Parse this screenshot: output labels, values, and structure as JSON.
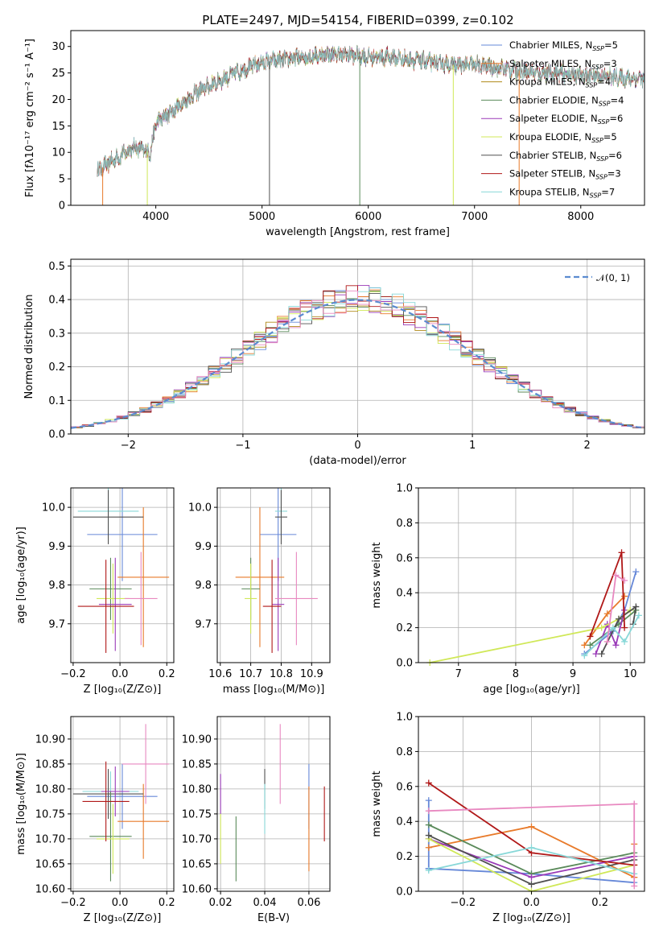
{
  "figure": {
    "title": "PLATE=2497, MJD=54154, FIBERID=0399, z=0.102"
  },
  "colors": {
    "palette": [
      "#6688d8",
      "#e87a2a",
      "#b08a18",
      "#5a8a5a",
      "#9a3ab8",
      "#d0e858",
      "#505050",
      "#b01818",
      "#88d8d8",
      "#e888c0"
    ]
  },
  "chart_data": [
    {
      "id": "spectrum",
      "type": "line",
      "title": "PLATE=2497, MJD=54154, FIBERID=0399, z=0.102",
      "xlabel": "wavelength [Angstrom, rest frame]",
      "ylabel": "Flux [fλ10⁻¹⁷ erg cm⁻² s⁻¹ A⁻¹]",
      "xlim": [
        3200,
        8600
      ],
      "ylim": [
        0,
        33
      ],
      "xticks": [
        4000,
        5000,
        6000,
        7000,
        8000
      ],
      "yticks": [
        0,
        5,
        10,
        15,
        20,
        25,
        30
      ],
      "grid": false,
      "legend_position": "top-right",
      "continuum_x": [
        3450,
        3600,
        3800,
        3950,
        4000,
        4200,
        4300,
        4400,
        4600,
        4800,
        5000,
        5200,
        5400,
        5600,
        5800,
        6000,
        6200,
        6400,
        6600,
        6800,
        7000,
        7200,
        7400,
        7600,
        7800,
        8000,
        8200,
        8400,
        8600
      ],
      "continuum_y": [
        6.5,
        8.5,
        11,
        10,
        15.5,
        18.5,
        20,
        21.5,
        23.5,
        25.5,
        27,
        27.5,
        28,
        28.5,
        28.5,
        28,
        28,
        27.5,
        27,
        26.5,
        26.5,
        26,
        25.5,
        25,
        25,
        24.5,
        24.5,
        24,
        24
      ],
      "series": [
        {
          "name": "Chabrier MILES, N_SSP=5",
          "label_main": "Chabrier MILES, N",
          "label_sub": "SSP",
          "label_end": "=5"
        },
        {
          "name": "Salpeter MILES, N_SSP=3",
          "label_main": "Salpeter MILES, N",
          "label_sub": "SSP",
          "label_end": "=3"
        },
        {
          "name": "Kroupa MILES, N_SSP=4",
          "label_main": "Kroupa MILES, N",
          "label_sub": "SSP",
          "label_end": "=4"
        },
        {
          "name": "Chabrier ELODIE, N_SSP=4",
          "label_main": "Chabrier ELODIE, N",
          "label_sub": "SSP",
          "label_end": "=4"
        },
        {
          "name": "Salpeter ELODIE, N_SSP=6",
          "label_main": "Salpeter ELODIE, N",
          "label_sub": "SSP",
          "label_end": "=6"
        },
        {
          "name": "Kroupa ELODIE, N_SSP=5",
          "label_main": "Kroupa ELODIE, N",
          "label_sub": "SSP",
          "label_end": "=5"
        },
        {
          "name": "Chabrier STELIB, N_SSP=6",
          "label_main": "Chabrier STELIB, N",
          "label_sub": "SSP",
          "label_end": "=6"
        },
        {
          "name": "Salpeter STELIB, N_SSP=3",
          "label_main": "Salpeter STELIB, N",
          "label_sub": "SSP",
          "label_end": "=3"
        },
        {
          "name": "Kroupa STELIB, N_SSP=7",
          "label_main": "Kroupa STELIB, N",
          "label_sub": "SSP",
          "label_end": "=7"
        }
      ],
      "series_colors": [
        "#6688d8",
        "#e87a2a",
        "#b08a18",
        "#5a8a5a",
        "#9a3ab8",
        "#d0e858",
        "#505050",
        "#b01818",
        "#88d8d8"
      ],
      "drop_lines": [
        {
          "x": 3500,
          "series": 1
        },
        {
          "x": 3920,
          "series": 5
        },
        {
          "x": 5070,
          "series": 6
        },
        {
          "x": 5920,
          "series": 3
        },
        {
          "x": 6800,
          "series": 5
        },
        {
          "x": 7420,
          "series": 1
        }
      ]
    },
    {
      "id": "residuals",
      "type": "line",
      "xlabel": "(data-model)/error",
      "ylabel": "Normed distribution",
      "xlim": [
        -2.5,
        2.5
      ],
      "ylim": [
        0,
        0.52
      ],
      "xticks": [
        -2,
        -1,
        0,
        1,
        2
      ],
      "yticks": [
        0.0,
        0.1,
        0.2,
        0.3,
        0.4,
        0.5
      ],
      "grid": true,
      "legend_position": "top-right",
      "legend_label": "𝒩(0, 1)",
      "gaussian": {
        "mean": 0,
        "sigma": 1
      },
      "bin_width": 0.1
    },
    {
      "id": "age_vs_Z",
      "type": "scatter",
      "xlabel": "Z [log₁₀(Z/Z⊙)]",
      "ylabel": "age  [log₁₀(age/yr)]",
      "xlim": [
        -0.21,
        0.23
      ],
      "ylim": [
        9.6,
        10.05
      ],
      "xticks": [
        -0.2,
        0.0,
        0.2
      ],
      "yticks": [
        9.7,
        9.8,
        9.9,
        10.0
      ],
      "grid": true,
      "points": [
        {
          "x": 0.01,
          "y": 9.93,
          "xerr": 0.15,
          "yerr": 0.12,
          "c": 0
        },
        {
          "x": 0.1,
          "y": 9.82,
          "xerr": 0.11,
          "yerr": 0.18,
          "c": 1
        },
        {
          "x": -0.05,
          "y": 9.99,
          "xerr": 0.13,
          "yerr": 0.06,
          "c": 8
        },
        {
          "x": -0.05,
          "y": 9.975,
          "xerr": 0.15,
          "yerr": 0.07,
          "c": 6
        },
        {
          "x": -0.04,
          "y": 9.79,
          "xerr": 0.09,
          "yerr": 0.08,
          "c": 3
        },
        {
          "x": -0.03,
          "y": 9.765,
          "xerr": 0.07,
          "yerr": 0.09,
          "c": 5
        },
        {
          "x": -0.02,
          "y": 9.75,
          "xerr": 0.07,
          "yerr": 0.12,
          "c": 4
        },
        {
          "x": -0.06,
          "y": 9.745,
          "xerr": 0.12,
          "yerr": 0.12,
          "c": 7
        },
        {
          "x": 0.09,
          "y": 9.765,
          "xerr": 0.07,
          "yerr": 0.12,
          "c": 9
        }
      ]
    },
    {
      "id": "age_vs_mass",
      "type": "scatter",
      "xlabel": "mass [log₁₀(M/M⊙)]",
      "ylabel": "",
      "xlim": [
        10.59,
        10.96
      ],
      "ylim": [
        9.6,
        10.05
      ],
      "xticks": [
        10.6,
        10.7,
        10.8,
        10.9
      ],
      "yticks": [
        9.7,
        9.8,
        9.9,
        10.0
      ],
      "grid": true,
      "points": [
        {
          "x": 10.79,
          "y": 9.93,
          "xerr": 0.06,
          "yerr": 0.12,
          "c": 0
        },
        {
          "x": 10.73,
          "y": 9.82,
          "xerr": 0.08,
          "yerr": 0.18,
          "c": 1
        },
        {
          "x": 10.8,
          "y": 9.99,
          "xerr": 0.02,
          "yerr": 0.06,
          "c": 8
        },
        {
          "x": 10.8,
          "y": 9.975,
          "xerr": 0.02,
          "yerr": 0.07,
          "c": 6
        },
        {
          "x": 10.7,
          "y": 9.79,
          "xerr": 0.03,
          "yerr": 0.08,
          "c": 3
        },
        {
          "x": 10.7,
          "y": 9.765,
          "xerr": 0.02,
          "yerr": 0.09,
          "c": 5
        },
        {
          "x": 10.79,
          "y": 9.75,
          "xerr": 0.02,
          "yerr": 0.12,
          "c": 4
        },
        {
          "x": 10.77,
          "y": 9.745,
          "xerr": 0.03,
          "yerr": 0.12,
          "c": 7
        },
        {
          "x": 10.85,
          "y": 9.765,
          "xerr": 0.07,
          "yerr": 0.12,
          "c": 9
        }
      ]
    },
    {
      "id": "weight_vs_age",
      "type": "line",
      "xlabel": "age  [log₁₀(age/yr)]",
      "ylabel": "mass weight",
      "xlim": [
        6.3,
        10.25
      ],
      "ylim": [
        0,
        1.0
      ],
      "xticks": [
        7,
        8,
        9,
        10
      ],
      "yticks": [
        0.0,
        0.2,
        0.4,
        0.6,
        0.8,
        1.0
      ],
      "grid": true,
      "series": [
        {
          "c": 0,
          "x": [
            9.2,
            9.7,
            9.9,
            10.1
          ],
          "y": [
            0.05,
            0.18,
            0.3,
            0.52
          ]
        },
        {
          "c": 1,
          "x": [
            9.2,
            9.6,
            9.9
          ],
          "y": [
            0.1,
            0.28,
            0.38
          ]
        },
        {
          "c": 3,
          "x": [
            9.3,
            9.8,
            10.1
          ],
          "y": [
            0.1,
            0.22,
            0.3
          ]
        },
        {
          "c": 4,
          "x": [
            9.4,
            9.6,
            9.75,
            9.9
          ],
          "y": [
            0.05,
            0.22,
            0.1,
            0.3
          ]
        },
        {
          "c": 5,
          "x": [
            6.5,
            9.5,
            9.8,
            10.0
          ],
          "y": [
            0.0,
            0.2,
            0.25,
            0.3
          ]
        },
        {
          "c": 6,
          "x": [
            9.5,
            9.8,
            10.1,
            10.05
          ],
          "y": [
            0.05,
            0.25,
            0.32,
            0.22
          ]
        },
        {
          "c": 7,
          "x": [
            9.3,
            9.85,
            9.9
          ],
          "y": [
            0.15,
            0.63,
            0.2
          ]
        },
        {
          "c": 8,
          "x": [
            9.2,
            9.7,
            9.9,
            10.15
          ],
          "y": [
            0.04,
            0.2,
            0.12,
            0.27
          ]
        },
        {
          "c": 9,
          "x": [
            9.6,
            9.75,
            9.9
          ],
          "y": [
            0.12,
            0.5,
            0.47
          ]
        }
      ]
    },
    {
      "id": "mass_vs_Z",
      "type": "scatter",
      "xlabel": "Z [log₁₀(Z/Z⊙)]",
      "ylabel": "mass [log₁₀(M/M⊙)]",
      "xlim": [
        -0.21,
        0.23
      ],
      "ylim": [
        10.595,
        10.945
      ],
      "xticks": [
        -0.2,
        0.0,
        0.2
      ],
      "yticks": [
        10.6,
        10.65,
        10.7,
        10.75,
        10.8,
        10.85,
        10.9
      ],
      "grid": true,
      "points": [
        {
          "x": 0.01,
          "y": 10.785,
          "xerr": 0.15,
          "yerr": 0.065,
          "c": 0
        },
        {
          "x": 0.1,
          "y": 10.735,
          "xerr": 0.11,
          "yerr": 0.075,
          "c": 1
        },
        {
          "x": -0.04,
          "y": 10.795,
          "xerr": 0.12,
          "yerr": 0.04,
          "c": 8
        },
        {
          "x": -0.05,
          "y": 10.79,
          "xerr": 0.15,
          "yerr": 0.05,
          "c": 6
        },
        {
          "x": -0.04,
          "y": 10.705,
          "xerr": 0.09,
          "yerr": 0.09,
          "c": 3
        },
        {
          "x": -0.03,
          "y": 10.7,
          "xerr": 0.07,
          "yerr": 0.07,
          "c": 5
        },
        {
          "x": -0.02,
          "y": 10.795,
          "xerr": 0.06,
          "yerr": 0.05,
          "c": 4
        },
        {
          "x": -0.06,
          "y": 10.775,
          "xerr": 0.1,
          "yerr": 0.08,
          "c": 7
        },
        {
          "x": 0.11,
          "y": 10.85,
          "xerr": 0.1,
          "yerr": 0.08,
          "c": 9
        }
      ]
    },
    {
      "id": "mass_vs_EBV",
      "type": "scatter",
      "xlabel": "E(B-V)",
      "ylabel": "",
      "xlim": [
        0.0185,
        0.0695
      ],
      "ylim": [
        10.595,
        10.945
      ],
      "xticks": [
        0.02,
        0.04,
        0.06
      ],
      "yticks": [
        10.6,
        10.65,
        10.7,
        10.75,
        10.8,
        10.85,
        10.9
      ],
      "grid": true,
      "points": [
        {
          "x": 0.02,
          "y": 10.7,
          "yerr": 0.05,
          "c": 5
        },
        {
          "x": 0.02,
          "y": 10.79,
          "yerr": 0.04,
          "c": 4
        },
        {
          "x": 0.027,
          "y": 10.68,
          "yerr": 0.065,
          "c": 3
        },
        {
          "x": 0.04,
          "y": 10.8,
          "yerr": 0.04,
          "c": 6
        },
        {
          "x": 0.04,
          "y": 10.76,
          "yerr": 0.05,
          "c": 8
        },
        {
          "x": 0.047,
          "y": 10.85,
          "yerr": 0.08,
          "c": 9
        },
        {
          "x": 0.06,
          "y": 10.785,
          "yerr": 0.065,
          "c": 0
        },
        {
          "x": 0.06,
          "y": 10.72,
          "yerr": 0.085,
          "c": 1
        },
        {
          "x": 0.067,
          "y": 10.75,
          "yerr": 0.055,
          "c": 7
        }
      ]
    },
    {
      "id": "weight_vs_Z",
      "type": "line",
      "xlabel": "Z [log₁₀(Z/Z⊙)]",
      "ylabel": "mass weight",
      "xlim": [
        -0.33,
        0.33
      ],
      "ylim": [
        0,
        1.0
      ],
      "xticks": [
        -0.2,
        0.0,
        0.2
      ],
      "yticks": [
        0.0,
        0.2,
        0.4,
        0.6,
        0.8,
        1.0
      ],
      "grid": true,
      "series": [
        {
          "c": 0,
          "x": [
            -0.3,
            0.0,
            0.3
          ],
          "y": [
            0.13,
            0.1,
            0.05
          ]
        },
        {
          "c": 0,
          "x": [
            -0.3,
            -0.3
          ],
          "y": [
            0.13,
            0.52
          ]
        },
        {
          "c": 1,
          "x": [
            -0.3,
            0.0,
            0.3
          ],
          "y": [
            0.25,
            0.37,
            0.08
          ]
        },
        {
          "c": 1,
          "x": [
            0.3,
            0.3
          ],
          "y": [
            0.08,
            0.27
          ]
        },
        {
          "c": 3,
          "x": [
            -0.3,
            0.0,
            0.3
          ],
          "y": [
            0.38,
            0.1,
            0.22
          ]
        },
        {
          "c": 4,
          "x": [
            -0.3,
            0.0,
            0.3
          ],
          "y": [
            0.3,
            0.08,
            0.2
          ]
        },
        {
          "c": 5,
          "x": [
            -0.3,
            0.0,
            0.3
          ],
          "y": [
            0.3,
            0.0,
            0.15
          ]
        },
        {
          "c": 6,
          "x": [
            -0.3,
            0.0,
            0.3
          ],
          "y": [
            0.32,
            0.04,
            0.18
          ]
        },
        {
          "c": 7,
          "x": [
            -0.3,
            0.0,
            0.3
          ],
          "y": [
            0.62,
            0.22,
            0.15
          ]
        },
        {
          "c": 8,
          "x": [
            -0.3,
            0.0,
            0.3
          ],
          "y": [
            0.12,
            0.25,
            0.1
          ]
        },
        {
          "c": 9,
          "x": [
            -0.3,
            0.3
          ],
          "y": [
            0.46,
            0.5
          ]
        },
        {
          "c": 9,
          "x": [
            0.3,
            0.3
          ],
          "y": [
            0.5,
            0.03
          ]
        }
      ]
    }
  ]
}
